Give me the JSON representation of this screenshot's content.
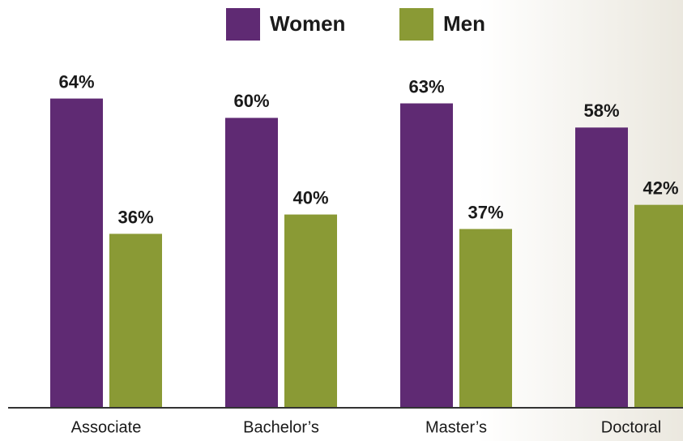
{
  "chart_data": {
    "type": "bar",
    "categories": [
      "Associate",
      "Bachelor’s",
      "Master’s",
      "Doctoral"
    ],
    "series": [
      {
        "name": "Women",
        "color": "#5f2a73",
        "values": [
          64,
          60,
          63,
          58
        ],
        "value_labels": [
          "64%",
          "60%",
          "63%",
          "58%"
        ]
      },
      {
        "name": "Men",
        "color": "#8a9a35",
        "values": [
          36,
          40,
          37,
          42
        ],
        "value_labels": [
          "36%",
          "40%",
          "37%",
          "42%"
        ]
      }
    ]
  }
}
